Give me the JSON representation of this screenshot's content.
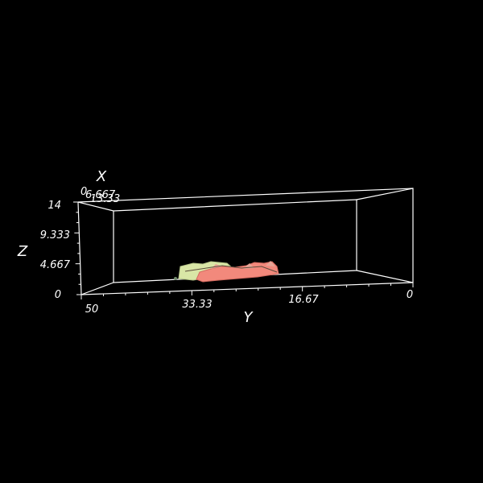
{
  "chart_data": {
    "type": "3d-isosurface",
    "background": "#000000",
    "axes": {
      "x": {
        "label": "X",
        "ticks": [
          "0",
          "6.667",
          "13.33"
        ]
      },
      "y": {
        "label": "Y",
        "ticks": [
          "50",
          "33.33",
          "16.67",
          "0"
        ],
        "range": [
          0,
          50
        ]
      },
      "z": {
        "label": "Z",
        "ticks": [
          "14",
          "9.333",
          "4.667",
          "0"
        ],
        "range": [
          0,
          14
        ]
      }
    },
    "surfaces": [
      {
        "color": "#f08c80",
        "y_range": [
          21,
          40
        ],
        "z_max": 1.5
      },
      {
        "color": "#d8e8a8",
        "y_range": [
          36,
          45
        ],
        "z_max": 1.2
      }
    ]
  }
}
